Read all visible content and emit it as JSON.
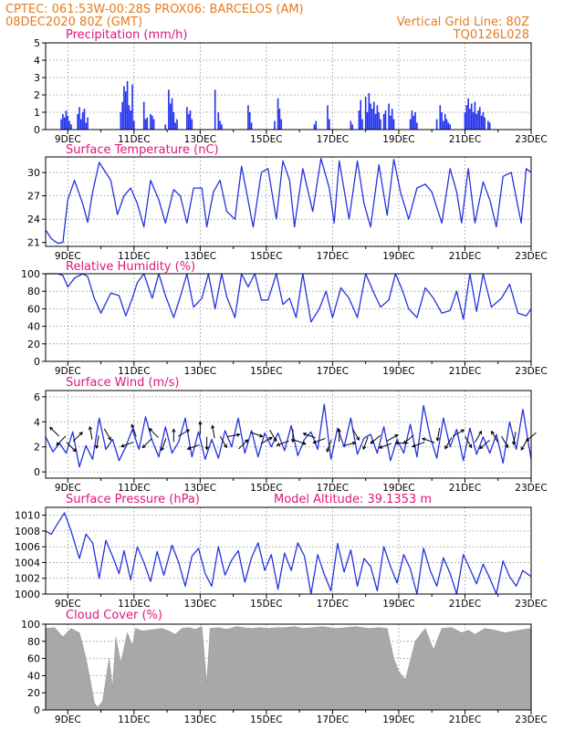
{
  "header": {
    "line1": "CPTEC:   061:53W-00:28S   PROX06: BARCELOS (AM)",
    "line2_left": "08DEC2020 80Z (GMT)",
    "line2_right": "Vertical Grid Line: 80Z",
    "line3_right": "TQ0126L028"
  },
  "colors": {
    "header_text": "#e87a1c",
    "panel_title": "#e0167a",
    "series_line": "#2233dd",
    "precip_bar": "#2233ee",
    "cloud_fill": "#a8a8a8",
    "arrow": "#000000"
  },
  "x_axis": {
    "tick_labels": [
      "9DEC",
      "11DEC",
      "13DEC",
      "15DEC",
      "17DEC",
      "19DEC",
      "21DEC",
      "23DEC"
    ],
    "tick_days": [
      9,
      11,
      13,
      15,
      17,
      19,
      21,
      23
    ],
    "day_range": [
      8.33,
      23.0
    ]
  },
  "chart_data": [
    {
      "type": "bar",
      "title": "Precipitation (mm/h)",
      "ylim": [
        0,
        5
      ],
      "yticks": [
        "0",
        "1",
        "2",
        "3",
        "4",
        "5"
      ],
      "x_days": [
        8.8,
        8.85,
        8.9,
        8.95,
        9.0,
        9.05,
        9.1,
        9.3,
        9.35,
        9.4,
        9.45,
        9.5,
        9.55,
        9.6,
        10.6,
        10.65,
        10.7,
        10.75,
        10.8,
        10.85,
        10.9,
        10.95,
        11.0,
        11.3,
        11.35,
        11.4,
        11.5,
        11.55,
        11.6,
        11.95,
        12.05,
        12.1,
        12.15,
        12.2,
        12.25,
        12.3,
        12.6,
        12.65,
        12.7,
        12.75,
        13.45,
        13.55,
        13.6,
        13.65,
        14.45,
        14.5,
        14.55,
        15.25,
        15.35,
        15.4,
        15.45,
        16.45,
        16.5,
        16.85,
        16.9,
        17.55,
        17.6,
        17.8,
        17.85,
        17.9,
        18.0,
        18.05,
        18.1,
        18.15,
        18.2,
        18.25,
        18.3,
        18.35,
        18.4,
        18.45,
        18.55,
        18.6,
        18.7,
        18.75,
        18.8,
        18.85,
        19.35,
        19.4,
        19.45,
        19.5,
        19.55,
        20.15,
        20.25,
        20.3,
        20.35,
        20.4,
        20.45,
        20.5,
        20.55,
        21.0,
        21.05,
        21.1,
        21.15,
        21.2,
        21.25,
        21.3,
        21.35,
        21.4,
        21.45,
        21.5,
        21.55,
        21.6,
        21.7,
        21.75
      ],
      "values": [
        0.6,
        0.9,
        0.7,
        1.1,
        0.8,
        0.5,
        0.3,
        0.9,
        1.3,
        0.6,
        1.0,
        1.2,
        0.4,
        0.7,
        1.0,
        1.6,
        2.5,
        2.2,
        2.8,
        1.4,
        1.1,
        2.6,
        0.5,
        1.6,
        0.6,
        0.7,
        0.9,
        0.8,
        0.6,
        0.3,
        2.3,
        1.5,
        1.8,
        1.0,
        0.4,
        0.6,
        1.3,
        0.9,
        1.1,
        0.6,
        2.3,
        1.0,
        0.5,
        0.3,
        1.4,
        1.0,
        0.4,
        0.5,
        1.8,
        1.2,
        0.6,
        0.3,
        0.5,
        1.4,
        0.6,
        0.5,
        0.3,
        1.1,
        1.7,
        0.6,
        1.9,
        1.0,
        2.1,
        1.5,
        1.2,
        1.6,
        0.9,
        1.4,
        1.0,
        0.6,
        0.9,
        1.1,
        1.5,
        0.8,
        1.2,
        0.6,
        0.6,
        1.1,
        0.8,
        1.0,
        0.4,
        0.6,
        1.4,
        1.0,
        0.5,
        0.9,
        0.6,
        0.4,
        0.3,
        1.0,
        1.4,
        1.8,
        1.2,
        1.5,
        1.0,
        1.6,
        0.9,
        1.1,
        1.3,
        0.8,
        1.0,
        0.7,
        0.5,
        0.4
      ]
    },
    {
      "type": "line",
      "title": "Surface Temperature (nC)",
      "ylim": [
        20.5,
        32.0
      ],
      "yticks": [
        "21",
        "24",
        "27",
        "30"
      ],
      "ytick_values": [
        21,
        24,
        27,
        30
      ],
      "x_days": [
        8.33,
        8.5,
        8.7,
        8.85,
        9.0,
        9.2,
        9.45,
        9.6,
        9.75,
        9.95,
        10.3,
        10.5,
        10.7,
        10.9,
        11.1,
        11.3,
        11.5,
        11.75,
        11.95,
        12.2,
        12.4,
        12.6,
        12.8,
        13.05,
        13.2,
        13.4,
        13.6,
        13.8,
        14.05,
        14.25,
        14.4,
        14.6,
        14.85,
        15.05,
        15.3,
        15.5,
        15.7,
        15.85,
        16.1,
        16.4,
        16.65,
        16.9,
        17.05,
        17.2,
        17.5,
        17.75,
        17.95,
        18.15,
        18.4,
        18.65,
        18.85,
        19.05,
        19.3,
        19.55,
        19.8,
        20.0,
        20.3,
        20.55,
        20.75,
        20.9,
        21.1,
        21.3,
        21.55,
        21.75,
        21.95,
        22.15,
        22.4,
        22.7,
        22.85,
        23.0
      ],
      "values": [
        22.6,
        21.5,
        20.9,
        21.0,
        26.5,
        29.0,
        26.0,
        23.6,
        27.5,
        31.3,
        29.0,
        24.6,
        27.0,
        28.0,
        26.0,
        23.0,
        29.0,
        26.5,
        23.5,
        27.8,
        27.0,
        23.5,
        28.0,
        28.0,
        23.0,
        27.5,
        29.0,
        25.0,
        24.0,
        30.8,
        27.5,
        23.0,
        30.0,
        30.5,
        24.0,
        31.5,
        29.0,
        23.0,
        30.5,
        25.0,
        31.8,
        28.0,
        23.5,
        31.5,
        24.0,
        31.5,
        26.0,
        23.0,
        31.0,
        24.5,
        31.7,
        27.5,
        24.0,
        28.0,
        28.5,
        27.5,
        23.5,
        30.5,
        27.5,
        23.5,
        30.5,
        23.5,
        28.8,
        26.5,
        23.0,
        29.5,
        30.0,
        23.5,
        30.5,
        30.0
      ]
    },
    {
      "type": "line",
      "title": "Relative Humidity (%)",
      "ylim": [
        0,
        100
      ],
      "yticks": [
        "0",
        "20",
        "40",
        "60",
        "80",
        "100"
      ],
      "ytick_values": [
        0,
        20,
        40,
        60,
        80,
        100
      ],
      "x_days": [
        8.33,
        8.5,
        8.7,
        8.85,
        9.0,
        9.2,
        9.45,
        9.6,
        9.8,
        10.0,
        10.3,
        10.55,
        10.75,
        10.95,
        11.1,
        11.3,
        11.55,
        11.75,
        11.95,
        12.2,
        12.4,
        12.6,
        12.8,
        13.05,
        13.25,
        13.45,
        13.65,
        13.8,
        14.05,
        14.25,
        14.45,
        14.65,
        14.85,
        15.05,
        15.3,
        15.5,
        15.7,
        15.9,
        16.1,
        16.35,
        16.6,
        16.8,
        17.0,
        17.25,
        17.5,
        17.75,
        18.0,
        18.25,
        18.45,
        18.7,
        18.9,
        19.1,
        19.3,
        19.55,
        19.8,
        20.05,
        20.3,
        20.55,
        20.75,
        20.95,
        21.15,
        21.35,
        21.55,
        21.8,
        22.1,
        22.35,
        22.6,
        22.85,
        23.0
      ],
      "values": [
        100,
        100,
        100,
        98,
        85,
        95,
        100,
        97,
        72,
        55,
        78,
        75,
        52,
        72,
        90,
        100,
        72,
        100,
        75,
        50,
        74,
        100,
        62,
        72,
        100,
        60,
        100,
        74,
        50,
        100,
        85,
        100,
        70,
        70,
        100,
        65,
        72,
        50,
        100,
        45,
        60,
        80,
        50,
        84,
        72,
        50,
        100,
        78,
        62,
        70,
        100,
        82,
        60,
        50,
        84,
        72,
        55,
        58,
        80,
        48,
        100,
        57,
        100,
        62,
        72,
        88,
        55,
        52,
        60
      ]
    },
    {
      "type": "line",
      "title": "Surface Wind (m/s)",
      "ylim": [
        -0.5,
        6.5
      ],
      "yticks": [
        "0",
        "2",
        "4",
        "6"
      ],
      "ytick_values": [
        0,
        2,
        4,
        6
      ],
      "x_days": [
        8.33,
        8.55,
        8.75,
        8.95,
        9.15,
        9.35,
        9.55,
        9.75,
        9.95,
        10.15,
        10.35,
        10.55,
        10.75,
        10.95,
        11.15,
        11.35,
        11.55,
        11.75,
        11.95,
        12.15,
        12.35,
        12.55,
        12.75,
        12.95,
        13.15,
        13.35,
        13.55,
        13.75,
        13.95,
        14.15,
        14.35,
        14.55,
        14.75,
        14.95,
        15.15,
        15.35,
        15.55,
        15.75,
        15.95,
        16.15,
        16.35,
        16.55,
        16.75,
        16.95,
        17.15,
        17.35,
        17.55,
        17.75,
        17.95,
        18.15,
        18.35,
        18.55,
        18.75,
        18.95,
        19.15,
        19.35,
        19.55,
        19.75,
        19.95,
        20.15,
        20.35,
        20.55,
        20.75,
        20.95,
        21.15,
        21.35,
        21.55,
        21.75,
        21.95,
        22.15,
        22.35,
        22.55,
        22.75,
        23.0
      ],
      "values": [
        2.8,
        1.6,
        2.3,
        1.5,
        3.2,
        0.4,
        2.1,
        1.0,
        4.3,
        1.8,
        2.6,
        0.9,
        2.0,
        3.4,
        1.8,
        4.4,
        2.5,
        1.2,
        3.6,
        1.5,
        2.4,
        4.3,
        1.2,
        3.2,
        1.0,
        2.6,
        1.1,
        3.3,
        2.0,
        4.3,
        1.5,
        3.3,
        1.2,
        3.1,
        2.0,
        3.1,
        1.7,
        3.7,
        1.3,
        2.6,
        3.2,
        1.8,
        5.4,
        1.0,
        3.5,
        2.0,
        4.3,
        1.4,
        2.7,
        3.0,
        1.5,
        3.6,
        0.9,
        2.6,
        1.5,
        3.8,
        1.2,
        5.3,
        2.8,
        1.1,
        4.3,
        2.0,
        3.4,
        0.9,
        3.5,
        1.4,
        2.8,
        1.5,
        3.0,
        0.7,
        4.0,
        1.8,
        5.0,
        1.0
      ]
    },
    {
      "type": "line",
      "title": "Surface Pressure (hPa)",
      "annotation": "Model Altitude: 39.1353 m",
      "ylim": [
        1000,
        1011
      ],
      "yticks": [
        "1000",
        "1002",
        "1004",
        "1006",
        "1008",
        "1010"
      ],
      "ytick_values": [
        1000,
        1002,
        1004,
        1006,
        1008,
        1010
      ],
      "x_days": [
        8.33,
        8.5,
        8.7,
        8.9,
        9.1,
        9.35,
        9.55,
        9.75,
        9.95,
        10.15,
        10.35,
        10.55,
        10.7,
        10.9,
        11.1,
        11.3,
        11.5,
        11.7,
        11.9,
        12.15,
        12.35,
        12.55,
        12.75,
        12.95,
        13.15,
        13.35,
        13.55,
        13.75,
        13.95,
        14.15,
        14.35,
        14.55,
        14.75,
        14.95,
        15.15,
        15.35,
        15.55,
        15.75,
        15.95,
        16.15,
        16.35,
        16.55,
        16.75,
        16.95,
        17.15,
        17.35,
        17.55,
        17.75,
        17.95,
        18.15,
        18.35,
        18.55,
        18.75,
        18.95,
        19.15,
        19.35,
        19.55,
        19.75,
        19.95,
        20.15,
        20.35,
        20.55,
        20.75,
        20.95,
        21.15,
        21.35,
        21.55,
        21.75,
        21.95,
        22.15,
        22.35,
        22.55,
        22.75,
        23.0
      ],
      "values": [
        1008.0,
        1007.6,
        1009.0,
        1010.3,
        1008.0,
        1004.5,
        1007.6,
        1006.5,
        1002.0,
        1006.8,
        1004.8,
        1002.6,
        1005.5,
        1001.8,
        1006.0,
        1004.0,
        1001.6,
        1005.4,
        1002.4,
        1006.2,
        1004.0,
        1001.0,
        1004.8,
        1005.8,
        1002.6,
        1001.0,
        1006.0,
        1002.4,
        1004.3,
        1005.5,
        1001.5,
        1004.6,
        1006.5,
        1003.0,
        1005.0,
        1000.6,
        1005.2,
        1003.0,
        1006.5,
        1004.8,
        1000.0,
        1005.0,
        1002.5,
        1000.4,
        1006.4,
        1002.8,
        1005.6,
        1001.0,
        1004.5,
        1003.5,
        1000.4,
        1006.0,
        1003.5,
        1001.4,
        1005.0,
        1003.2,
        1000.0,
        1005.8,
        1003.0,
        1001.0,
        1004.6,
        1002.6,
        1000.0,
        1005.0,
        1003.2,
        1001.3,
        1003.8,
        1002.0,
        1000.0,
        1004.2,
        1002.2,
        1001.0,
        1003.0,
        1002.2
      ]
    },
    {
      "type": "area",
      "title": "Cloud Cover (%)",
      "ylim": [
        0,
        100
      ],
      "yticks": [
        "0",
        "20",
        "40",
        "60",
        "80",
        "100"
      ],
      "ytick_values": [
        0,
        20,
        40,
        60,
        80,
        100
      ],
      "x_days": [
        8.33,
        8.6,
        8.85,
        9.1,
        9.35,
        9.55,
        9.7,
        9.8,
        9.9,
        10.05,
        10.25,
        10.35,
        10.45,
        10.6,
        10.8,
        10.95,
        11.05,
        11.25,
        11.45,
        11.65,
        11.85,
        12.05,
        12.25,
        12.45,
        12.65,
        12.85,
        13.05,
        13.2,
        13.3,
        13.55,
        13.8,
        14.1,
        14.3,
        14.55,
        14.8,
        15.05,
        15.3,
        15.55,
        15.85,
        16.1,
        16.4,
        16.7,
        16.9,
        17.1,
        17.4,
        17.7,
        17.9,
        18.1,
        18.4,
        18.65,
        18.85,
        19.0,
        19.2,
        19.5,
        19.8,
        20.05,
        20.3,
        20.6,
        20.9,
        21.1,
        21.3,
        21.6,
        21.9,
        22.2,
        22.5,
        22.8,
        23.0
      ],
      "values": [
        95,
        96,
        85,
        95,
        90,
        60,
        30,
        8,
        3,
        10,
        60,
        25,
        85,
        55,
        90,
        75,
        95,
        92,
        93,
        94,
        95,
        92,
        88,
        95,
        96,
        94,
        97,
        30,
        95,
        96,
        94,
        97,
        96,
        95,
        96,
        95,
        96,
        96,
        97,
        95,
        96,
        97,
        96,
        95,
        96,
        97,
        96,
        95,
        96,
        95,
        60,
        45,
        35,
        80,
        95,
        70,
        95,
        96,
        90,
        93,
        88,
        95,
        93,
        90,
        92,
        94,
        95
      ]
    }
  ],
  "wind_arrows": {
    "x_days": [
      8.6,
      8.8,
      9.1,
      9.3,
      9.7,
      9.9,
      10.2,
      10.8,
      11.0,
      11.4,
      11.6,
      11.9,
      12.2,
      12.5,
      12.8,
      13.0,
      13.2,
      13.4,
      13.7,
      14.0,
      14.3,
      14.7,
      15.0,
      15.2,
      15.5,
      15.8,
      16.0,
      16.3,
      16.6,
      16.9,
      17.2,
      17.5,
      17.7,
      18.0,
      18.3,
      18.6,
      18.8,
      19.1,
      19.3,
      19.6,
      19.9,
      20.2,
      20.5,
      20.8,
      21.1,
      21.4,
      21.6,
      21.9,
      22.2,
      22.5,
      22.8,
      23.0
    ],
    "y_values": [
      3.2,
      2.5,
      2.0,
      2.8,
      3.1,
      2.4,
      3.0,
      2.2,
      3.3,
      2.3,
      3.1,
      2.2,
      2.9,
      3.1,
      2.0,
      3.5,
      2.3,
      3.2,
      2.4,
      2.9,
      2.2,
      3.0,
      2.5,
      2.9,
      2.3,
      2.9,
      2.4,
      2.9,
      2.5,
      2.1,
      2.9,
      2.2,
      3.0,
      2.3,
      2.6,
      2.1,
      2.7,
      2.3,
      2.6,
      2.2,
      2.5,
      3.0,
      2.3,
      3.1,
      2.4,
      2.8,
      2.2,
      2.8,
      2.4,
      2.7,
      2.2,
      2.8
    ],
    "dir_deg": [
      135,
      225,
      315,
      45,
      100,
      260,
      300,
      200,
      110,
      225,
      135,
      250,
      90,
      30,
      200,
      90,
      270,
      100,
      300,
      10,
      45,
      340,
      30,
      300,
      200,
      270,
      340,
      160,
      200,
      250,
      90,
      15,
      300,
      250,
      220,
      200,
      30,
      180,
      220,
      200,
      160,
      260,
      240,
      30,
      300,
      60,
      220,
      120,
      300,
      260,
      240,
      220
    ]
  }
}
